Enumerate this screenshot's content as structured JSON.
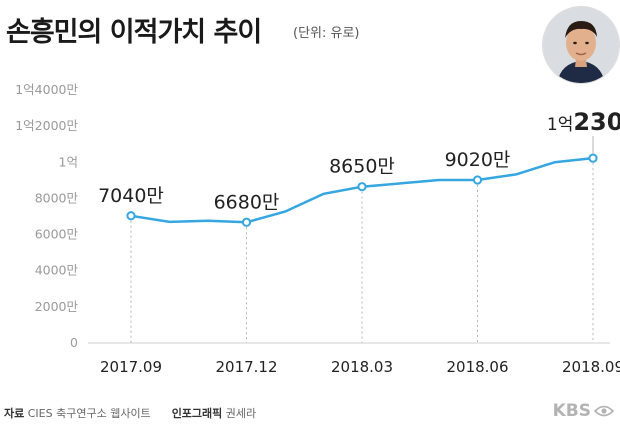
{
  "header": {
    "title": "손흥민의 이적가치 추이",
    "unit": "(단위: 유로)"
  },
  "photo": {
    "icon": "player-portrait"
  },
  "footer": {
    "source_label": "자료",
    "source_text": "CIES 축구연구소 웹사이트",
    "graphic_label": "인포그래픽",
    "graphic_text": "권세라"
  },
  "logo": {
    "text": "KBS"
  },
  "colors": {
    "line": "#35a6e0",
    "grid": "#b5b5b5",
    "axis": "#cfcfcf",
    "text": "#222222"
  },
  "chart_data": {
    "type": "line",
    "title": "손흥민의 이적가치 추이",
    "ylabel": "",
    "xlabel": "",
    "ylim": [
      0,
      140000000
    ],
    "yticks": [
      {
        "value": 0,
        "label": "0"
      },
      {
        "value": 20000000,
        "label": "2000만"
      },
      {
        "value": 40000000,
        "label": "4000만"
      },
      {
        "value": 60000000,
        "label": "6000만"
      },
      {
        "value": 80000000,
        "label": "8000만"
      },
      {
        "value": 100000000,
        "label": "1억"
      },
      {
        "value": 120000000,
        "label": "1억2000만"
      },
      {
        "value": 140000000,
        "label": "1억4000만"
      }
    ],
    "grid": "dotted vertical drop lines at labeled points",
    "series": [
      {
        "values": [
          {
            "x": "2017.09",
            "y": 70400000
          },
          {
            "x": "2017.10",
            "y": 67000000
          },
          {
            "x": "2017.11",
            "y": 67600000
          },
          {
            "x": "2017.12",
            "y": 66800000
          },
          {
            "x": "2018.01",
            "y": 72700000
          },
          {
            "x": "2018.02",
            "y": 82500000
          },
          {
            "x": "2018.03",
            "y": 86500000
          },
          {
            "x": "2018.04",
            "y": 88300000
          },
          {
            "x": "2018.05",
            "y": 90200000
          },
          {
            "x": "2018.06",
            "y": 90200000
          },
          {
            "x": "2018.07",
            "y": 93300000
          },
          {
            "x": "2018.08",
            "y": 100000000
          },
          {
            "x": "2018.09",
            "y": 102300000
          }
        ]
      }
    ],
    "labeled_points": [
      {
        "x": "2017.09",
        "y": 70400000,
        "label": "7040만"
      },
      {
        "x": "2017.12",
        "y": 66800000,
        "label": "6680만"
      },
      {
        "x": "2018.03",
        "y": 86500000,
        "label": "8650만"
      },
      {
        "x": "2018.06",
        "y": 90200000,
        "label": "9020만"
      },
      {
        "x": "2018.09",
        "y": 102300000,
        "label_prefix": "1억",
        "label_main": "230",
        "label_suffix": "만"
      }
    ],
    "categories": [
      "2017.09",
      "2017.12",
      "2018.03",
      "2018.06",
      "2018.09"
    ]
  }
}
